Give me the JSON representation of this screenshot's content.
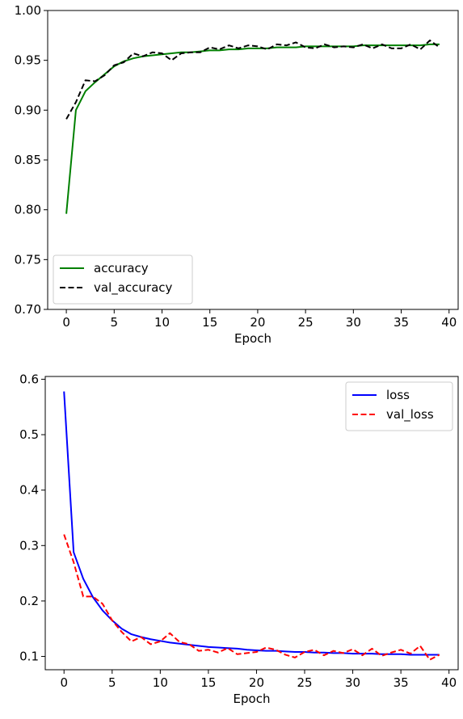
{
  "chart_data": [
    {
      "type": "line",
      "xlabel": "Epoch",
      "ylabel": "",
      "xlim": [
        -1.95,
        40.95
      ],
      "ylim": [
        0.7,
        1.0
      ],
      "xticks": [
        0,
        5,
        10,
        15,
        20,
        25,
        30,
        35,
        40
      ],
      "yticks": [
        0.7,
        0.75,
        0.8,
        0.85,
        0.9,
        0.95,
        1.0
      ],
      "ytick_labels": [
        "0.70",
        "0.75",
        "0.80",
        "0.85",
        "0.90",
        "0.95",
        "1.00"
      ],
      "legend": "lower-left",
      "grid": false,
      "x": [
        0,
        1,
        2,
        3,
        4,
        5,
        6,
        7,
        8,
        9,
        10,
        11,
        12,
        13,
        14,
        15,
        16,
        17,
        18,
        19,
        20,
        21,
        22,
        23,
        24,
        25,
        26,
        27,
        28,
        29,
        30,
        31,
        32,
        33,
        34,
        35,
        36,
        37,
        38,
        39
      ],
      "series": [
        {
          "name": "accuracy",
          "color": "#008000",
          "dash": "solid",
          "values": [
            0.796,
            0.9,
            0.919,
            0.928,
            0.936,
            0.944,
            0.949,
            0.952,
            0.954,
            0.955,
            0.956,
            0.957,
            0.958,
            0.958,
            0.959,
            0.96,
            0.96,
            0.961,
            0.961,
            0.962,
            0.962,
            0.962,
            0.963,
            0.963,
            0.963,
            0.964,
            0.964,
            0.964,
            0.964,
            0.964,
            0.964,
            0.965,
            0.965,
            0.965,
            0.965,
            0.965,
            0.965,
            0.965,
            0.966,
            0.966
          ]
        },
        {
          "name": "val_accuracy",
          "color": "#000000",
          "dash": "dashed",
          "values": [
            0.891,
            0.908,
            0.93,
            0.929,
            0.935,
            0.945,
            0.948,
            0.957,
            0.954,
            0.958,
            0.957,
            0.95,
            0.957,
            0.958,
            0.958,
            0.963,
            0.961,
            0.965,
            0.962,
            0.965,
            0.964,
            0.961,
            0.966,
            0.965,
            0.968,
            0.963,
            0.962,
            0.966,
            0.963,
            0.964,
            0.963,
            0.966,
            0.962,
            0.966,
            0.962,
            0.962,
            0.966,
            0.961,
            0.97,
            0.963
          ]
        }
      ]
    },
    {
      "type": "line",
      "xlabel": "Epoch",
      "ylabel": "",
      "xlim": [
        -1.95,
        40.95
      ],
      "ylim": [
        0.076,
        0.605
      ],
      "xticks": [
        0,
        5,
        10,
        15,
        20,
        25,
        30,
        35,
        40
      ],
      "yticks": [
        0.1,
        0.2,
        0.3,
        0.4,
        0.5,
        0.6
      ],
      "ytick_labels": [
        "0.1",
        "0.2",
        "0.3",
        "0.4",
        "0.5",
        "0.6"
      ],
      "legend": "upper-right",
      "grid": false,
      "x": [
        0,
        1,
        2,
        3,
        4,
        5,
        6,
        7,
        8,
        9,
        10,
        11,
        12,
        13,
        14,
        15,
        16,
        17,
        18,
        19,
        20,
        21,
        22,
        23,
        24,
        25,
        26,
        27,
        28,
        29,
        30,
        31,
        32,
        33,
        34,
        35,
        36,
        37,
        38,
        39
      ],
      "series": [
        {
          "name": "loss",
          "color": "#0000ff",
          "dash": "solid",
          "values": [
            0.578,
            0.288,
            0.24,
            0.207,
            0.183,
            0.165,
            0.15,
            0.14,
            0.135,
            0.131,
            0.128,
            0.125,
            0.123,
            0.121,
            0.119,
            0.117,
            0.116,
            0.115,
            0.114,
            0.112,
            0.111,
            0.11,
            0.11,
            0.109,
            0.108,
            0.108,
            0.107,
            0.107,
            0.106,
            0.106,
            0.105,
            0.105,
            0.105,
            0.104,
            0.104,
            0.104,
            0.103,
            0.103,
            0.103,
            0.103
          ]
        },
        {
          "name": "val_loss",
          "color": "#ff0000",
          "dash": "dashed",
          "values": [
            0.32,
            0.27,
            0.208,
            0.208,
            0.195,
            0.165,
            0.144,
            0.127,
            0.135,
            0.122,
            0.127,
            0.142,
            0.126,
            0.122,
            0.11,
            0.112,
            0.107,
            0.115,
            0.104,
            0.106,
            0.108,
            0.116,
            0.112,
            0.103,
            0.098,
            0.108,
            0.112,
            0.102,
            0.11,
            0.106,
            0.113,
            0.102,
            0.114,
            0.101,
            0.107,
            0.112,
            0.105,
            0.119,
            0.094,
            0.103
          ]
        }
      ]
    }
  ]
}
